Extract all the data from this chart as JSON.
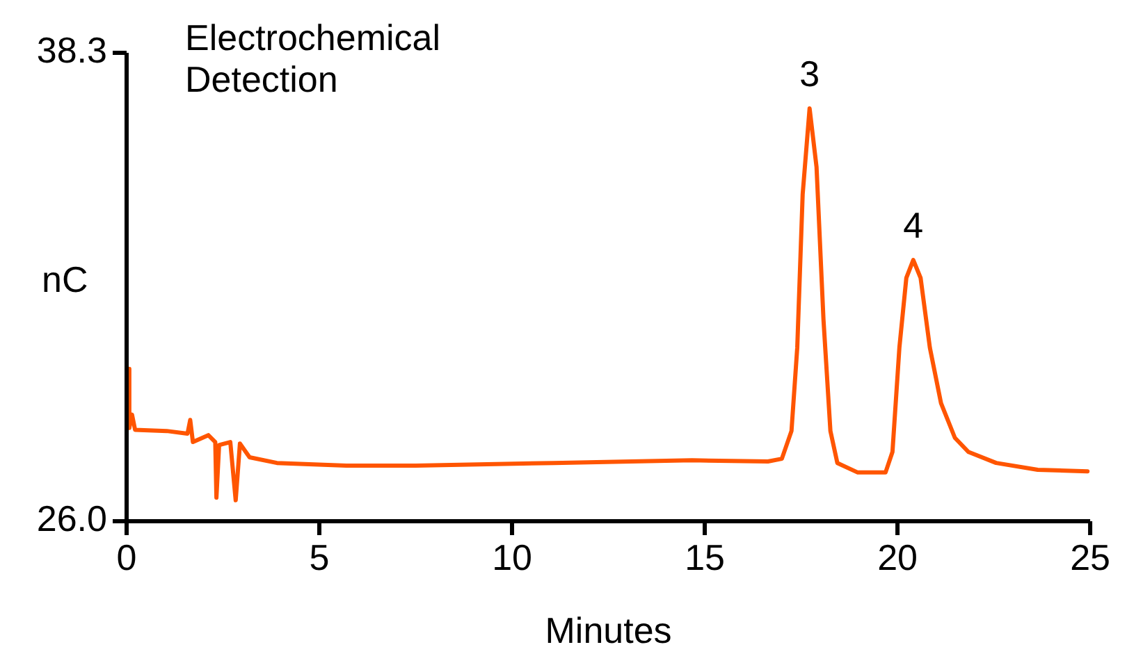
{
  "chart_data": {
    "type": "line",
    "title": "Electrochemical Detection",
    "xlabel": "Minutes",
    "ylabel": "nC",
    "x": [
      0,
      0.04,
      0.07,
      0.14,
      0.22,
      1.04,
      1.58,
      1.65,
      1.72,
      2.12,
      2.3,
      2.33,
      2.4,
      2.69,
      2.83,
      2.94,
      3.19,
      3.9,
      5.7,
      7.5,
      11.08,
      14.67,
      16.64,
      17.0,
      17.25,
      17.4,
      17.54,
      17.72,
      17.9,
      18.08,
      18.26,
      18.44,
      18.97,
      19.69,
      19.87,
      20.05,
      20.23,
      20.41,
      20.6,
      20.84,
      21.13,
      21.49,
      21.84,
      22.56,
      23.64,
      24.93
    ],
    "series": [
      {
        "color": "#ff5500",
        "values": [
          28.4,
          30.0,
          28.45,
          28.8,
          28.4,
          28.37,
          28.3,
          28.66,
          28.08,
          28.26,
          28.08,
          26.62,
          28.0,
          28.08,
          26.55,
          28.04,
          27.68,
          27.53,
          27.46,
          27.46,
          27.53,
          27.6,
          27.57,
          27.64,
          28.37,
          30.56,
          34.58,
          36.84,
          35.3,
          31.3,
          28.37,
          27.53,
          27.28,
          27.28,
          27.82,
          30.56,
          32.39,
          32.86,
          32.39,
          30.56,
          29.1,
          28.19,
          27.82,
          27.53,
          27.35,
          27.31
        ]
      }
    ],
    "xlim": [
      0,
      25
    ],
    "xticks": [
      0,
      5,
      10,
      15,
      20,
      25
    ],
    "ylim": [
      26,
      38.3
    ],
    "yticks": [
      {
        "value": 26,
        "label": "26.0"
      },
      38.3
    ],
    "annotations": [
      {
        "text": "3",
        "x": 17.72,
        "y": 36.84
      },
      {
        "text": "4",
        "x": 20.41,
        "y": 32.86
      }
    ],
    "grid": false,
    "legend": false,
    "marker": "none",
    "line_style": "solid"
  }
}
